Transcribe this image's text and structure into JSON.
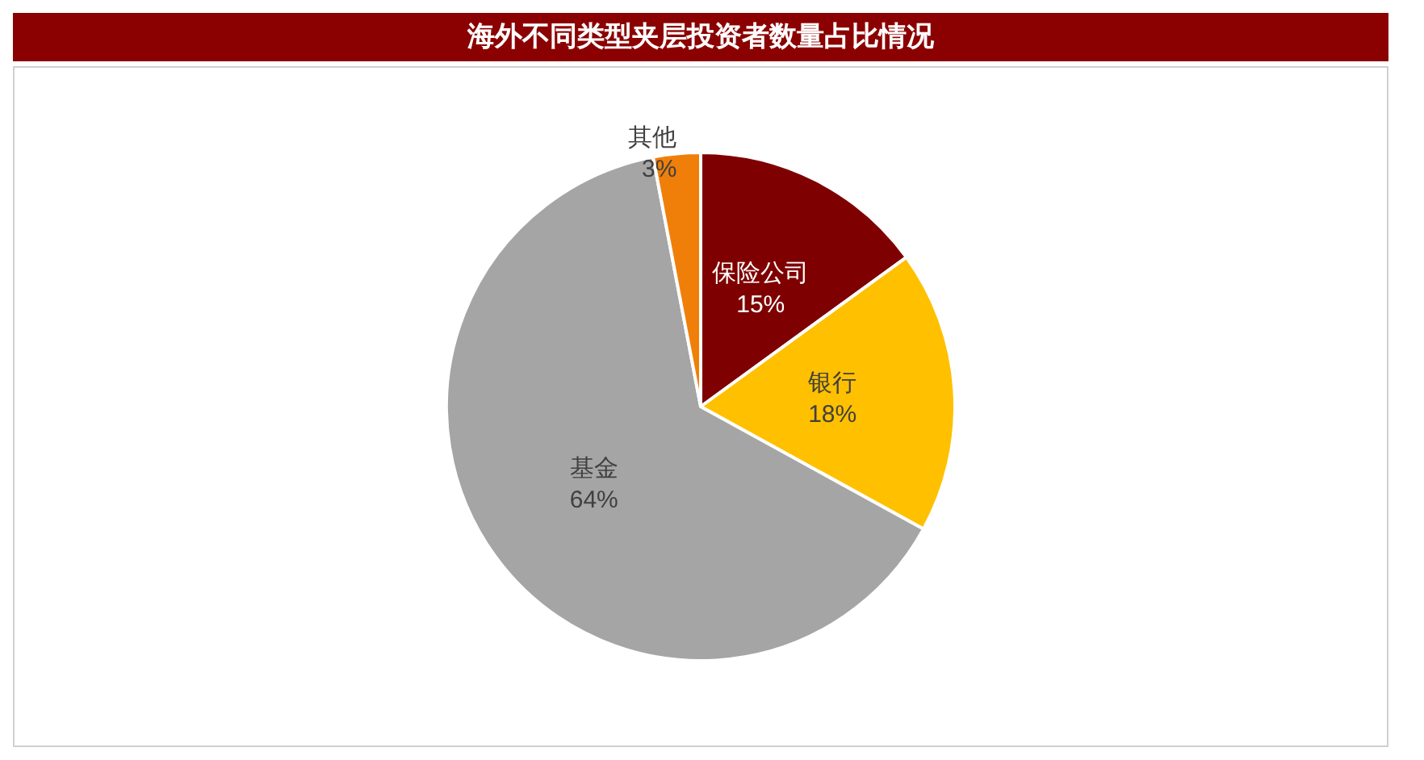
{
  "chart_data": {
    "type": "pie",
    "title": "海外不同类型夹层投资者数量占比情况",
    "categories": [
      "保险公司",
      "银行",
      "基金",
      "其他"
    ],
    "values": [
      15,
      18,
      64,
      3
    ],
    "colors": [
      "#7f0000",
      "#ffc000",
      "#a5a5a5",
      "#f07f09"
    ],
    "value_labels": [
      "15%",
      "18%",
      "64%",
      "3%"
    ],
    "legend": false
  }
}
